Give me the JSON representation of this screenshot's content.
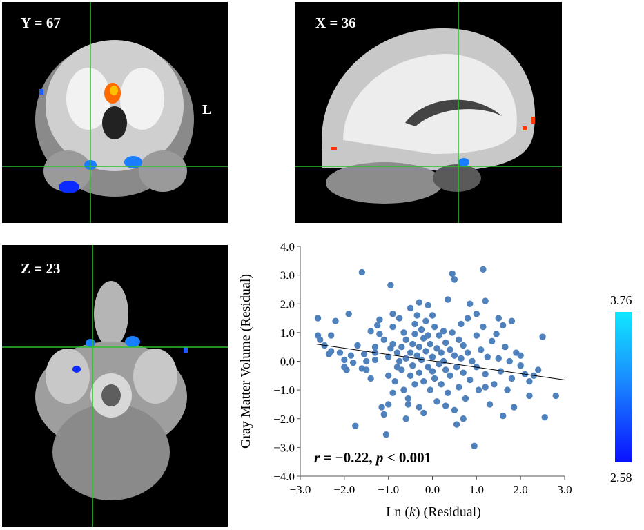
{
  "panels": {
    "coronal": {
      "label": "Y = 67",
      "side_label": "L"
    },
    "sagittal": {
      "label": "X = 36"
    },
    "axial": {
      "label": "Z = 23"
    }
  },
  "colorbar": {
    "max_label": "3.76",
    "min_label": "2.58",
    "colors": [
      "#11e8ff",
      "#1a8cff",
      "#0a10ff"
    ]
  },
  "chart_data": {
    "type": "scatter",
    "xlabel_prefix": "Ln (",
    "xlabel_var": "k",
    "xlabel_suffix": ") (Residual)",
    "ylabel": "Gray Matter Volume (Residual)",
    "xlim": [
      -3.0,
      3.0
    ],
    "ylim": [
      -4.0,
      4.0
    ],
    "xticks": [
      "−3.0",
      "−2.0",
      "−1.0",
      "0.0",
      "1.0",
      "2.0",
      "3.0"
    ],
    "yticks": [
      "4.0",
      "3.0",
      "2.0",
      "1.0",
      "0.0",
      "−1.0",
      "−2.0",
      "−3.0",
      "−4.0"
    ],
    "annotation": {
      "r_sym": "r",
      "r_val": " = −0.22, ",
      "p_sym": "p",
      "p_val": " < 0.001"
    },
    "point_color": "#4f81bd",
    "fit_line": {
      "x": [
        -2.65,
        3.0
      ],
      "y": [
        0.6,
        -0.65
      ]
    },
    "points": [
      [
        -2.6,
        1.5
      ],
      [
        -2.6,
        0.9
      ],
      [
        -2.55,
        0.75
      ],
      [
        -2.3,
        0.9
      ],
      [
        -2.3,
        0.35
      ],
      [
        -2.35,
        0.25
      ],
      [
        -2.2,
        1.4
      ],
      [
        -2.0,
        0.05
      ],
      [
        -2.0,
        -0.2
      ],
      [
        -1.95,
        -0.3
      ],
      [
        -1.9,
        1.65
      ],
      [
        -1.85,
        0.2
      ],
      [
        -1.8,
        -0.05
      ],
      [
        -1.75,
        -2.25
      ],
      [
        -1.6,
        3.1
      ],
      [
        -1.55,
        0.25
      ],
      [
        -1.5,
        -0.3
      ],
      [
        -1.5,
        0.0
      ],
      [
        -1.4,
        1.05
      ],
      [
        -1.3,
        0.3
      ],
      [
        -1.3,
        0.05
      ],
      [
        -1.3,
        0.5
      ],
      [
        -1.2,
        1.45
      ],
      [
        -1.25,
        1.25
      ],
      [
        -1.15,
        -1.6
      ],
      [
        -1.1,
        -1.85
      ],
      [
        -1.1,
        0.75
      ],
      [
        -1.05,
        -2.55
      ],
      [
        -1.0,
        0.15
      ],
      [
        -1.0,
        -0.5
      ],
      [
        -0.95,
        0.45
      ],
      [
        -0.95,
        2.65
      ],
      [
        -0.9,
        1.65
      ],
      [
        -0.9,
        1.2
      ],
      [
        -0.9,
        0.6
      ],
      [
        -0.85,
        -0.7
      ],
      [
        -0.8,
        0.3
      ],
      [
        -0.8,
        -0.2
      ],
      [
        -0.75,
        1.5
      ],
      [
        -0.75,
        0.0
      ],
      [
        -0.7,
        -0.3
      ],
      [
        -0.7,
        0.5
      ],
      [
        -0.65,
        1.0
      ],
      [
        -0.65,
        -1.0
      ],
      [
        -0.6,
        0.75
      ],
      [
        -0.6,
        0.1
      ],
      [
        -0.55,
        -1.3
      ],
      [
        -0.5,
        1.85
      ],
      [
        -0.5,
        0.3
      ],
      [
        -0.5,
        -0.5
      ],
      [
        -0.45,
        0.6
      ],
      [
        -0.45,
        -0.15
      ],
      [
        -0.4,
        1.3
      ],
      [
        -0.4,
        0.95
      ],
      [
        -0.4,
        -0.8
      ],
      [
        -0.35,
        1.6
      ],
      [
        -0.35,
        0.2
      ],
      [
        -0.3,
        0.5
      ],
      [
        -0.3,
        -0.4
      ],
      [
        -0.3,
        -1.6
      ],
      [
        -0.25,
        1.1
      ],
      [
        -0.25,
        0.05
      ],
      [
        -0.2,
        0.8
      ],
      [
        -0.2,
        -0.7
      ],
      [
        -0.15,
        1.4
      ],
      [
        -0.15,
        0.35
      ],
      [
        -0.1,
        -0.2
      ],
      [
        -0.1,
        0.9
      ],
      [
        -0.05,
        -1.0
      ],
      [
        -0.05,
        0.6
      ],
      [
        0.0,
        0.15
      ],
      [
        0.0,
        -0.35
      ],
      [
        0.05,
        1.2
      ],
      [
        0.05,
        -0.6
      ],
      [
        0.1,
        0.45
      ],
      [
        0.1,
        -1.4
      ],
      [
        0.15,
        0.9
      ],
      [
        0.15,
        -0.1
      ],
      [
        0.2,
        0.3
      ],
      [
        0.2,
        -0.8
      ],
      [
        0.25,
        1.05
      ],
      [
        0.25,
        0.0
      ],
      [
        0.3,
        -0.3
      ],
      [
        0.3,
        0.65
      ],
      [
        0.35,
        2.15
      ],
      [
        0.35,
        -1.1
      ],
      [
        0.4,
        0.4
      ],
      [
        0.4,
        -0.5
      ],
      [
        0.45,
        3.05
      ],
      [
        0.45,
        1.0
      ],
      [
        0.5,
        2.85
      ],
      [
        0.5,
        0.2
      ],
      [
        0.5,
        -1.7
      ],
      [
        0.55,
        -0.2
      ],
      [
        0.6,
        0.75
      ],
      [
        0.6,
        -0.9
      ],
      [
        0.65,
        1.3
      ],
      [
        0.65,
        0.1
      ],
      [
        0.7,
        -0.4
      ],
      [
        0.7,
        0.55
      ],
      [
        0.75,
        -1.3
      ],
      [
        0.8,
        0.3
      ],
      [
        0.8,
        1.5
      ],
      [
        0.85,
        -0.65
      ],
      [
        0.9,
        0.0
      ],
      [
        0.95,
        -2.95
      ],
      [
        1.0,
        0.9
      ],
      [
        1.0,
        -0.2
      ],
      [
        1.05,
        -1.0
      ],
      [
        1.1,
        0.4
      ],
      [
        1.15,
        3.2
      ],
      [
        1.15,
        1.2
      ],
      [
        1.2,
        2.1
      ],
      [
        1.2,
        -0.45
      ],
      [
        1.25,
        0.15
      ],
      [
        1.3,
        -1.5
      ],
      [
        1.35,
        0.7
      ],
      [
        1.4,
        -0.8
      ],
      [
        1.45,
        0.95
      ],
      [
        1.5,
        1.5
      ],
      [
        1.5,
        0.1
      ],
      [
        1.55,
        -0.35
      ],
      [
        1.6,
        1.25
      ],
      [
        1.65,
        0.5
      ],
      [
        1.7,
        -1.0
      ],
      [
        1.75,
        0.0
      ],
      [
        1.8,
        -0.6
      ],
      [
        1.85,
        -1.6
      ],
      [
        1.9,
        0.3
      ],
      [
        2.0,
        -0.15
      ],
      [
        2.1,
        -0.45
      ],
      [
        2.2,
        -0.7
      ],
      [
        2.3,
        -0.5
      ],
      [
        2.5,
        0.85
      ],
      [
        2.55,
        -1.95
      ],
      [
        2.8,
        -1.2
      ],
      [
        -0.6,
        -2.0
      ],
      [
        -0.2,
        -1.8
      ],
      [
        0.3,
        -1.55
      ],
      [
        0.7,
        -2.0
      ],
      [
        1.6,
        -1.9
      ],
      [
        1.2,
        -0.9
      ],
      [
        -1.4,
        -0.6
      ],
      [
        -0.9,
        -1.1
      ],
      [
        -2.1,
        0.3
      ],
      [
        -1.7,
        0.55
      ],
      [
        -1.2,
        0.95
      ],
      [
        0.0,
        1.6
      ],
      [
        -0.3,
        2.05
      ],
      [
        1.0,
        1.65
      ],
      [
        -0.1,
        1.95
      ],
      [
        -2.45,
        0.55
      ],
      [
        2.0,
        0.2
      ],
      [
        2.4,
        -0.3
      ],
      [
        1.8,
        1.4
      ],
      [
        0.85,
        2.0
      ],
      [
        -0.55,
        -1.5
      ],
      [
        0.55,
        -2.2
      ],
      [
        -1.0,
        -1.5
      ],
      [
        -1.6,
        -0.25
      ],
      [
        2.2,
        -1.2
      ]
    ]
  }
}
